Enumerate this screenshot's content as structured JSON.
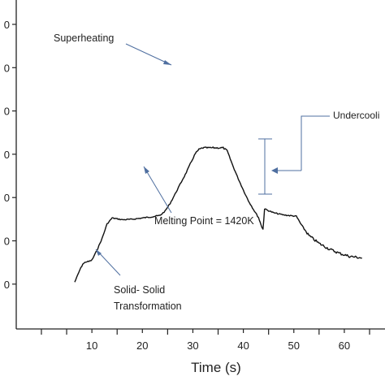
{
  "chart_data": {
    "type": "line",
    "title": "",
    "xlabel": "Time (s)",
    "ylabel": "",
    "xlim": [
      0,
      66
    ],
    "x_ticks": [
      10,
      20,
      30,
      40,
      50,
      60
    ],
    "y_tick_labels_partial": [
      "0",
      "0",
      "0",
      "0",
      "0",
      "0",
      "0"
    ],
    "grid": false,
    "series": [
      {
        "color": "#111111",
        "points": [
          [
            6.6,
            0.05
          ],
          [
            7.0,
            0.16
          ],
          [
            7.6,
            0.33
          ],
          [
            8.2,
            0.47
          ],
          [
            8.8,
            0.52
          ],
          [
            9.4,
            0.53
          ],
          [
            10.0,
            0.56
          ],
          [
            11.0,
            0.79
          ],
          [
            12.0,
            1.06
          ],
          [
            13.0,
            1.4
          ],
          [
            14.0,
            1.54
          ],
          [
            15.0,
            1.52
          ],
          [
            16.0,
            1.5
          ],
          [
            18.0,
            1.51
          ],
          [
            20.0,
            1.54
          ],
          [
            22.0,
            1.57
          ],
          [
            23.5,
            1.6
          ],
          [
            24.5,
            1.7
          ],
          [
            25.5,
            1.88
          ],
          [
            26.5,
            2.1
          ],
          [
            27.5,
            2.33
          ],
          [
            28.5,
            2.55
          ],
          [
            29.5,
            2.8
          ],
          [
            30.5,
            3.04
          ],
          [
            31.2,
            3.13
          ],
          [
            32.0,
            3.17
          ],
          [
            34.0,
            3.17
          ],
          [
            36.0,
            3.17
          ],
          [
            36.8,
            3.1
          ],
          [
            38.0,
            2.73
          ],
          [
            39.0,
            2.45
          ],
          [
            40.0,
            2.19
          ],
          [
            41.0,
            1.94
          ],
          [
            42.0,
            1.74
          ],
          [
            43.0,
            1.55
          ],
          [
            43.7,
            1.32
          ],
          [
            43.9,
            1.28
          ],
          [
            44.2,
            1.75
          ],
          [
            46.0,
            1.66
          ],
          [
            48.0,
            1.61
          ],
          [
            50.5,
            1.58
          ],
          [
            51.5,
            1.38
          ],
          [
            53.0,
            1.13
          ],
          [
            55.0,
            0.95
          ],
          [
            57.0,
            0.82
          ],
          [
            59.0,
            0.72
          ],
          [
            61.0,
            0.65
          ],
          [
            63.0,
            0.62
          ],
          [
            63.5,
            0.61
          ]
        ]
      }
    ],
    "annotations": [
      {
        "id": "superheating",
        "text": "Superheating"
      },
      {
        "id": "undercooling",
        "text": "Undercooli"
      },
      {
        "id": "melting",
        "text": "Melting Point = 1420K"
      },
      {
        "id": "solid_line1",
        "text": "Solid- Solid"
      },
      {
        "id": "solid_line2",
        "text": "Transformation"
      }
    ]
  }
}
